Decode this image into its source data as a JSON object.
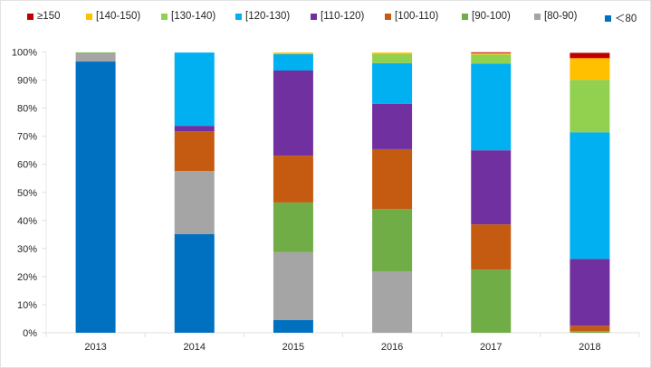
{
  "chart_data": {
    "type": "bar",
    "stacked": true,
    "normalized": true,
    "title": "",
    "xlabel": "",
    "ylabel": "",
    "ylim": [
      0,
      100
    ],
    "yticks": [
      "0%",
      "10%",
      "20%",
      "30%",
      "40%",
      "50%",
      "60%",
      "70%",
      "80%",
      "90%",
      "100%"
    ],
    "categories": [
      "2013",
      "2014",
      "2015",
      "2016",
      "2017",
      "2018"
    ],
    "grid": false,
    "legend_position": "top",
    "series": [
      {
        "name": "＜80",
        "color": "#0070C0",
        "values": [
          96.6,
          35.1,
          4.5,
          0.0,
          0.0,
          0.0
        ]
      },
      {
        "name": "[80-90)",
        "color": "#A5A5A5",
        "values": [
          2.9,
          22.5,
          24.2,
          21.9,
          0.0,
          0.0
        ]
      },
      {
        "name": "[90-100)",
        "color": "#70AD47",
        "values": [
          0.3,
          0.0,
          17.7,
          22.2,
          22.5,
          0.6
        ]
      },
      {
        "name": "[100-110)",
        "color": "#C55A11",
        "values": [
          0.0,
          14.2,
          16.7,
          21.3,
          16.1,
          1.9
        ]
      },
      {
        "name": "[110-120)",
        "color": "#7030A0",
        "values": [
          0.0,
          1.9,
          30.3,
          16.1,
          26.4,
          23.8
        ]
      },
      {
        "name": "[120-130)",
        "color": "#00B0F0",
        "values": [
          0.0,
          26.1,
          5.8,
          14.5,
          30.9,
          45.1
        ]
      },
      {
        "name": "[130-140)",
        "color": "#92D050",
        "values": [
          0.0,
          0.0,
          0.0,
          3.2,
          3.2,
          18.7
        ]
      },
      {
        "name": "[140-150)",
        "color": "#FFC000",
        "values": [
          0.0,
          0.0,
          0.6,
          0.6,
          0.5,
          7.7
        ]
      },
      {
        "name": "≥150",
        "color": "#C00000",
        "values": [
          0.0,
          0.0,
          0.0,
          0.0,
          0.3,
          1.9
        ]
      }
    ],
    "legend_order": [
      "≥150",
      "[140-150)",
      "[130-140)",
      "[120-130)",
      "[110-120)",
      "[100-110)",
      "[90-100)",
      "[80-90)",
      "＜80"
    ]
  }
}
